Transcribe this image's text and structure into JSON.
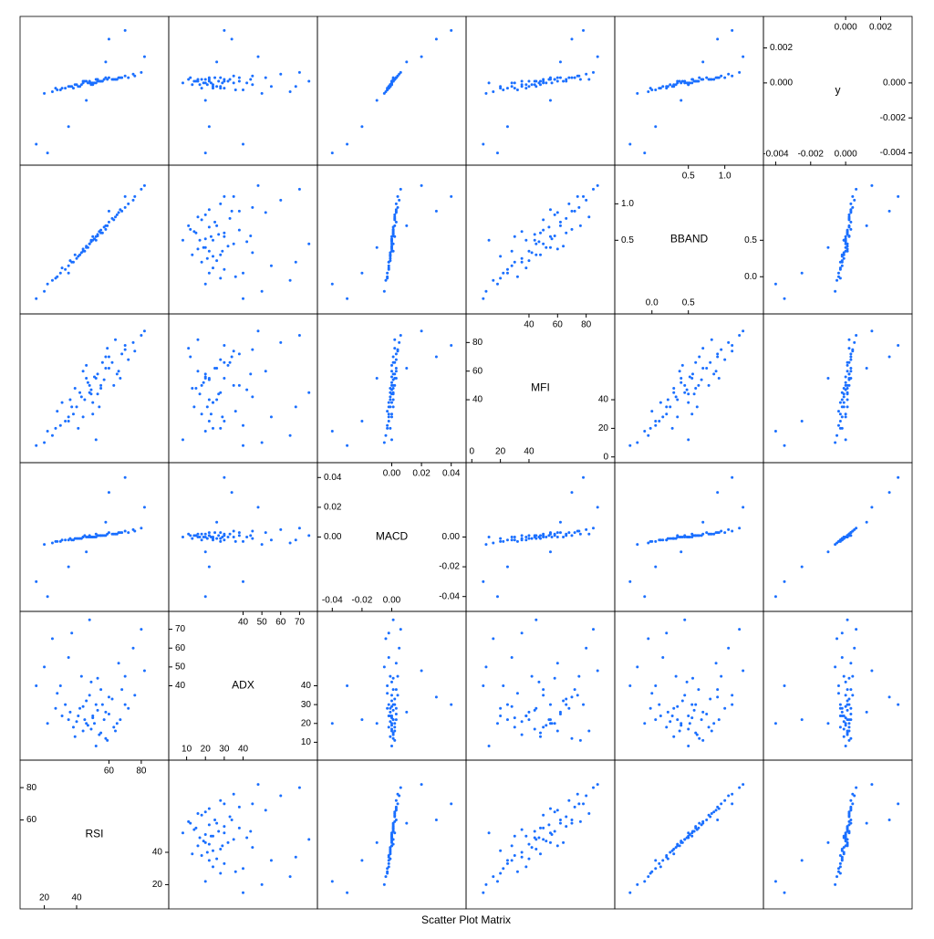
{
  "chart_data": {
    "type": "splom",
    "title": "Scatter Plot Matrix",
    "color": "#1a6fff",
    "variables": [
      {
        "name": "RSI",
        "lim": [
          5,
          97
        ],
        "ticks": [
          20,
          40,
          60,
          80
        ],
        "values": [
          45,
          52,
          38,
          60,
          70,
          30,
          55,
          48,
          42,
          65,
          35,
          58,
          50,
          75,
          25,
          47,
          62,
          40,
          53,
          44,
          68,
          33,
          57,
          49,
          36,
          80,
          20,
          54,
          46,
          63,
          41,
          51,
          72,
          28,
          59,
          43,
          66,
          39,
          56,
          50,
          82,
          15,
          60,
          22,
          70,
          35,
          48,
          52,
          46,
          58,
          37,
          64,
          44,
          55,
          31,
          67,
          49,
          76,
          27,
          53
        ]
      },
      {
        "name": "ADX",
        "lim": [
          0.5,
          79.5
        ],
        "ticks": [
          10,
          20,
          30,
          40,
          50,
          60,
          70
        ],
        "values": [
          22,
          30,
          18,
          25,
          45,
          40,
          15,
          35,
          28,
          20,
          55,
          12,
          24,
          60,
          65,
          19,
          33,
          21,
          27,
          16,
          38,
          30,
          22,
          42,
          26,
          70,
          50,
          14,
          32,
          18,
          24,
          20,
          28,
          36,
          11,
          45,
          52,
          13,
          30,
          23,
          48,
          40,
          34,
          20,
          30,
          22,
          75,
          8,
          20,
          26,
          68,
          16,
          29,
          38,
          24,
          22,
          17,
          35,
          28,
          44
        ]
      },
      {
        "name": "MACD",
        "lim": [
          -0.05,
          0.05
        ],
        "ticks": [
          {
            "value": -0.04,
            "label": "-0.04"
          },
          {
            "value": -0.02,
            "label": "-0.02"
          },
          {
            "value": 0,
            "label": "0.00"
          },
          {
            "value": 0.02,
            "label": "0.02"
          },
          {
            "value": 0.04,
            "label": "0.04"
          }
        ],
        "values": [
          0.001,
          0.002,
          -0.002,
          0.003,
          0.004,
          -0.003,
          0.001,
          0,
          -0.001,
          0.002,
          -0.002,
          0.001,
          0,
          0.005,
          -0.004,
          0,
          0.002,
          -0.001,
          0.001,
          0,
          0.003,
          -0.002,
          0.001,
          0,
          -0.001,
          0.006,
          -0.005,
          0.001,
          0,
          0.002,
          -0.001,
          0,
          0.003,
          -0.003,
          0.002,
          -0.001,
          0.003,
          -0.001,
          0.001,
          0,
          0.02,
          -0.03,
          0.03,
          -0.04,
          0.04,
          -0.02,
          0.001,
          0,
          -0.01,
          0.01,
          -0.002,
          0.002,
          0,
          0.001,
          -0.002,
          0.003,
          0,
          0.004,
          -0.003,
          0.001
        ]
      },
      {
        "name": "MFI",
        "lim": [
          -4,
          100
        ],
        "ticks": [
          0,
          20,
          40,
          60,
          80
        ],
        "values": [
          40,
          55,
          30,
          62,
          75,
          22,
          48,
          50,
          45,
          58,
          28,
          70,
          38,
          80,
          15,
          52,
          66,
          35,
          44,
          60,
          72,
          25,
          54,
          47,
          40,
          85,
          10,
          35,
          64,
          50,
          20,
          56,
          68,
          32,
          76,
          42,
          60,
          48,
          66,
          30,
          88,
          8,
          70,
          18,
          78,
          25,
          45,
          12,
          55,
          62,
          35,
          82,
          28,
          50,
          38,
          55,
          44,
          74,
          20,
          58
        ]
      },
      {
        "name": "BBAND",
        "lim": [
          -0.51,
          1.53
        ],
        "ticks": [
          {
            "value": 0,
            "label": "0.0"
          },
          0.5,
          {
            "value": 1,
            "label": "1.0"
          }
        ],
        "values": [
          0.35,
          0.55,
          0.2,
          0.75,
          0.95,
          0.05,
          0.6,
          0.45,
          0.3,
          0.85,
          0.15,
          0.65,
          0.5,
          1.05,
          -0.05,
          0.4,
          0.8,
          0.25,
          0.58,
          0.38,
          0.9,
          0.1,
          0.68,
          0.48,
          0.22,
          1.2,
          -0.2,
          0.62,
          0.42,
          0.78,
          0.28,
          0.52,
          1.0,
          0,
          0.7,
          0.33,
          0.88,
          0.3,
          0.6,
          0.55,
          1.25,
          -0.3,
          0.9,
          -0.1,
          1.1,
          0.05,
          0.45,
          0.5,
          0.4,
          0.7,
          0.2,
          0.82,
          0.35,
          0.64,
          0.12,
          0.92,
          0.5,
          1.1,
          -0.02,
          0.56
        ]
      },
      {
        "name": "y",
        "lim": [
          -0.0047,
          0.0038
        ],
        "ticks": [
          {
            "value": -0.004,
            "label": "-0.004"
          },
          {
            "value": -0.002,
            "label": "-0.002"
          },
          {
            "value": 0,
            "label": "0.000"
          },
          {
            "value": 0.002,
            "label": "0.002"
          }
        ],
        "values": [
          0.0001,
          0.0002,
          -0.0003,
          0.0003,
          0.0004,
          -0.0004,
          0.0001,
          0,
          -0.0002,
          0.0002,
          -0.0002,
          0.0003,
          -0.0001,
          0.0005,
          -0.0005,
          0,
          0.0002,
          -0.0001,
          0.0001,
          0.0001,
          0.0003,
          -0.0003,
          0.0002,
          0,
          -0.0002,
          0.0006,
          -0.0006,
          0.0001,
          0.0001,
          0.0002,
          -0.0002,
          0,
          0.0003,
          -0.0004,
          0.0002,
          -0.0001,
          0.0003,
          -0.0001,
          0.0001,
          0,
          0.0015,
          -0.0035,
          0.0025,
          -0.004,
          0.003,
          -0.0025,
          0.0001,
          0,
          -0.001,
          0.0012,
          -0.0002,
          0.0002,
          0,
          0.0001,
          -0.0003,
          0.0003,
          -0.0001,
          0.0004,
          -0.0003,
          0.0002
        ]
      }
    ]
  }
}
